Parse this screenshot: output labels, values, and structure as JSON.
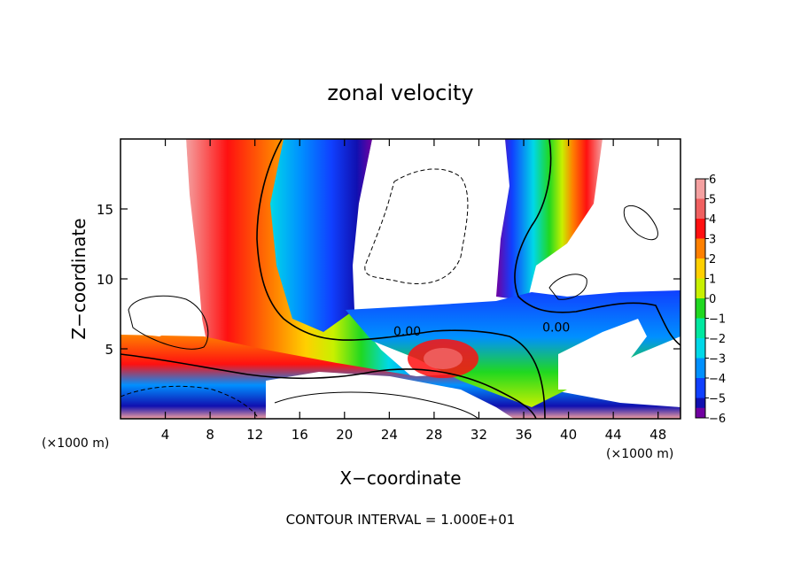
{
  "chart_data": {
    "type": "heatmap",
    "title": "zonal velocity",
    "xlabel": "X−coordinate",
    "ylabel": "Z−coordinate",
    "x_unit_left": "(×1000 m)",
    "x_unit_right": "(×1000 m)",
    "xlim": [
      0,
      50
    ],
    "ylim": [
      0,
      20
    ],
    "x_ticks": [
      4,
      8,
      12,
      16,
      20,
      24,
      28,
      32,
      36,
      40,
      44,
      48
    ],
    "y_ticks": [
      5,
      10,
      15
    ],
    "footer": "CONTOUR INTERVAL = 1.000E+01",
    "colorbar": {
      "levels": [
        6,
        5,
        4,
        3,
        2,
        1,
        0,
        -1,
        -2,
        -3,
        -4,
        -5,
        -6
      ],
      "labels": [
        "6",
        "5",
        "4",
        "3",
        "2",
        "1",
        "0",
        "−1",
        "−2",
        "−3",
        "−4",
        "−5",
        "−6"
      ],
      "colors": [
        "#f4a0a0",
        "#f06060",
        "#ff1010",
        "#ff8000",
        "#ffd000",
        "#c8f000",
        "#20d820",
        "#00e8a0",
        "#00d8e8",
        "#0090ff",
        "#1040ff",
        "#1010b0",
        "#7000a0"
      ]
    },
    "contour_labels": [
      {
        "text": "0.00",
        "x": 25.6,
        "z": 6.0
      },
      {
        "text": "0.00",
        "x": 38.9,
        "z": 6.3
      }
    ]
  }
}
